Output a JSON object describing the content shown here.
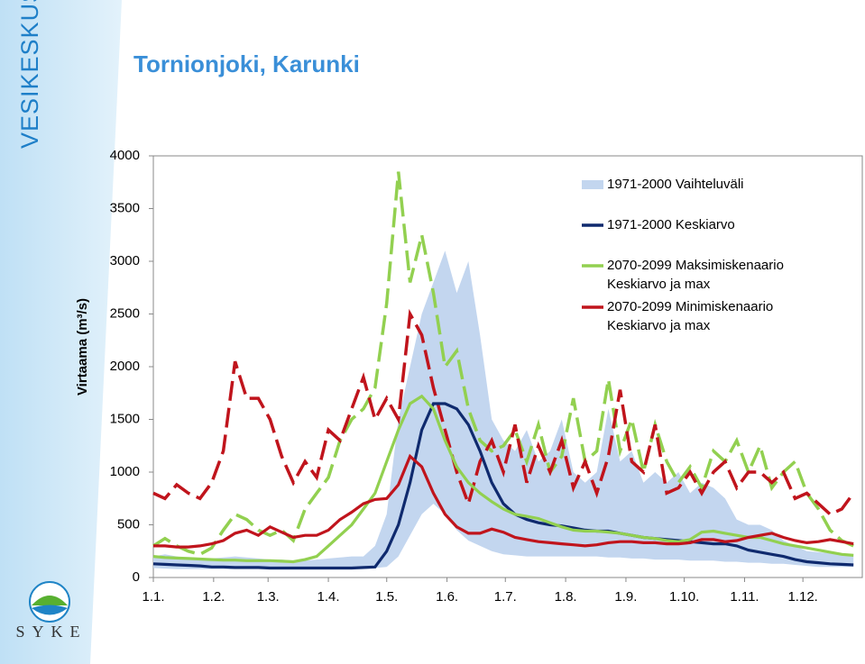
{
  "brand": "VESIKESKUS",
  "logo": "SYKE",
  "chart_data": {
    "type": "line",
    "title": "Tornionjoki, Karunki",
    "ylabel": "Virtaama (m³/s)",
    "xlim": [
      0,
      365
    ],
    "xticks": [
      {
        "value": 0,
        "label": "1.1."
      },
      {
        "value": 31,
        "label": "1.2."
      },
      {
        "value": 59,
        "label": "1.3."
      },
      {
        "value": 90,
        "label": "1.4."
      },
      {
        "value": 120,
        "label": "1.5."
      },
      {
        "value": 151,
        "label": "1.6."
      },
      {
        "value": 181,
        "label": "1.7."
      },
      {
        "value": 212,
        "label": "1.8."
      },
      {
        "value": 243,
        "label": "1.9."
      },
      {
        "value": 273,
        "label": "1.10."
      },
      {
        "value": 304,
        "label": "1.11."
      },
      {
        "value": 334,
        "label": "1.12."
      }
    ],
    "ylim": [
      0,
      4000
    ],
    "yticks": [
      0,
      500,
      1000,
      1500,
      2000,
      2500,
      3000,
      3500,
      4000
    ],
    "x": [
      0,
      6,
      12,
      18,
      24,
      30,
      36,
      42,
      48,
      54,
      60,
      66,
      72,
      78,
      84,
      90,
      96,
      102,
      108,
      114,
      120,
      126,
      132,
      138,
      144,
      150,
      156,
      162,
      168,
      174,
      180,
      186,
      192,
      198,
      204,
      210,
      216,
      222,
      228,
      234,
      240,
      246,
      252,
      258,
      264,
      270,
      276,
      282,
      288,
      294,
      300,
      306,
      312,
      318,
      324,
      330,
      336,
      342,
      348,
      354,
      360
    ],
    "series": [
      {
        "name": "1971-2000 Vaihteluväli",
        "color": "#c3d6ef",
        "high": [
          200,
          220,
          200,
          180,
          170,
          180,
          190,
          200,
          190,
          180,
          170,
          170,
          160,
          160,
          170,
          180,
          190,
          200,
          200,
          300,
          600,
          1500,
          2000,
          2500,
          2800,
          3100,
          2700,
          3000,
          2300,
          1500,
          1300,
          1200,
          1400,
          1100,
          1200,
          1500,
          1000,
          900,
          1000,
          1600,
          1100,
          1200,
          900,
          1000,
          900,
          1000,
          800,
          900,
          850,
          750,
          550,
          500,
          500,
          450,
          350,
          300,
          250,
          240,
          230,
          220,
          220
        ],
        "low": [
          90,
          85,
          80,
          80,
          80,
          80,
          80,
          80,
          80,
          80,
          80,
          80,
          80,
          80,
          80,
          80,
          80,
          80,
          80,
          90,
          100,
          200,
          400,
          600,
          700,
          600,
          450,
          350,
          300,
          250,
          220,
          210,
          200,
          200,
          200,
          200,
          200,
          200,
          200,
          190,
          190,
          180,
          180,
          170,
          170,
          170,
          160,
          160,
          160,
          150,
          150,
          140,
          140,
          130,
          130,
          120,
          110,
          100,
          100,
          100,
          100
        ]
      },
      {
        "name": "1971-2000 Keskiarvo",
        "color": "#0f2a6e",
        "values": [
          130,
          125,
          120,
          115,
          110,
          100,
          100,
          95,
          95,
          95,
          90,
          90,
          90,
          90,
          90,
          90,
          90,
          90,
          95,
          100,
          250,
          500,
          900,
          1400,
          1650,
          1650,
          1600,
          1450,
          1200,
          900,
          700,
          600,
          550,
          520,
          500,
          490,
          470,
          450,
          440,
          440,
          420,
          400,
          380,
          370,
          360,
          350,
          340,
          330,
          320,
          320,
          300,
          260,
          240,
          220,
          200,
          170,
          150,
          140,
          130,
          125,
          120
        ]
      },
      {
        "name": "2070-2099 Maksimiskenaario",
        "legend_sub": "Keskiarvo ja max",
        "color": "#92d050",
        "values": [
          200,
          190,
          185,
          180,
          175,
          170,
          165,
          165,
          160,
          160,
          160,
          155,
          150,
          170,
          200,
          300,
          400,
          500,
          650,
          800,
          1100,
          1400,
          1650,
          1720,
          1600,
          1300,
          1050,
          900,
          800,
          720,
          650,
          600,
          580,
          560,
          520,
          480,
          450,
          440,
          440,
          430,
          420,
          400,
          380,
          370,
          350,
          340,
          360,
          430,
          440,
          420,
          400,
          380,
          380,
          350,
          320,
          300,
          280,
          260,
          240,
          220,
          210
        ],
        "max_values": [
          300,
          370,
          300,
          250,
          220,
          280,
          450,
          600,
          550,
          450,
          400,
          450,
          350,
          650,
          800,
          950,
          1300,
          1500,
          1600,
          1800,
          2600,
          3850,
          2800,
          3250,
          2700,
          2000,
          2150,
          1600,
          1300,
          1200,
          1250,
          1400,
          1100,
          1450,
          1000,
          1150,
          1700,
          1100,
          1200,
          1880,
          1200,
          1500,
          1000,
          1450,
          1100,
          900,
          1050,
          850,
          1200,
          1100,
          1300,
          1000,
          1250,
          850,
          1000,
          1100,
          800,
          650,
          450,
          350,
          300
        ]
      },
      {
        "name": "2070-2099 Minimiskenaario",
        "legend_sub": "Keskiarvo ja max",
        "color": "#c0141c",
        "values": [
          300,
          300,
          290,
          290,
          300,
          320,
          350,
          420,
          450,
          400,
          480,
          430,
          380,
          400,
          400,
          450,
          550,
          620,
          700,
          740,
          750,
          880,
          1150,
          1050,
          800,
          600,
          480,
          420,
          420,
          460,
          430,
          380,
          360,
          340,
          330,
          320,
          310,
          300,
          310,
          330,
          340,
          340,
          330,
          330,
          320,
          320,
          330,
          360,
          360,
          340,
          350,
          380,
          400,
          420,
          380,
          350,
          330,
          340,
          360,
          340,
          320
        ],
        "max_values": [
          800,
          750,
          880,
          800,
          750,
          900,
          1200,
          2050,
          1700,
          1700,
          1500,
          1150,
          900,
          1100,
          950,
          1400,
          1300,
          1600,
          1900,
          1500,
          1700,
          1500,
          2500,
          2300,
          1800,
          1400,
          1000,
          700,
          1100,
          1300,
          1000,
          1450,
          900,
          1250,
          1000,
          1300,
          850,
          1100,
          800,
          1150,
          1780,
          1100,
          1000,
          1450,
          800,
          850,
          1000,
          800,
          1000,
          1100,
          850,
          1000,
          1000,
          900,
          1000,
          750,
          800,
          700,
          600,
          650,
          800
        ]
      }
    ]
  }
}
